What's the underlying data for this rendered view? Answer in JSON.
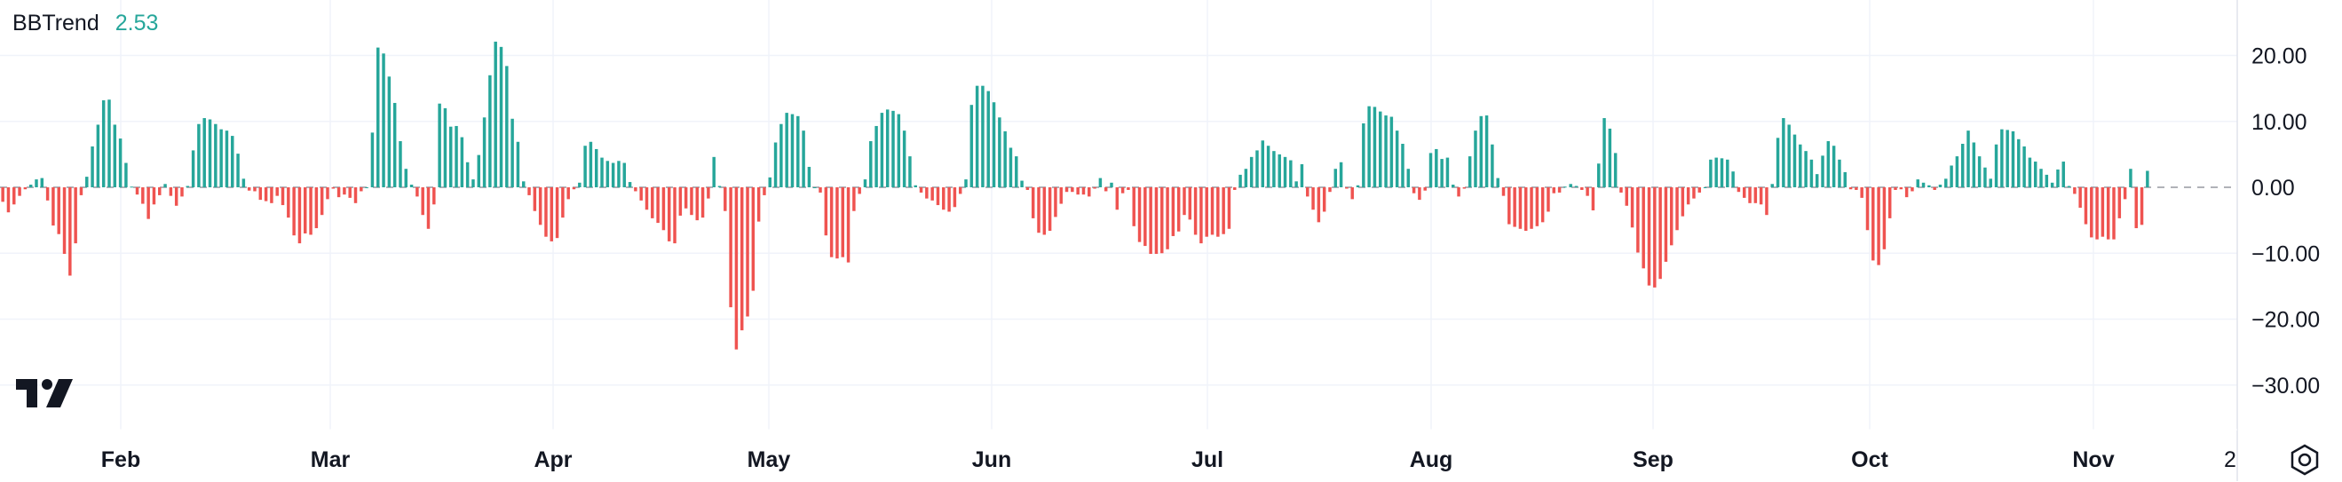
{
  "indicator": {
    "name": "BBTrend",
    "value": "2.53"
  },
  "colors": {
    "positive": "#26a69a",
    "negative": "#ef5350",
    "grid": "#f0f3fa",
    "text": "#131722"
  },
  "icons": {
    "logo": "tradingview-logo-icon",
    "settings": "settings-gear-icon"
  },
  "chart_data": {
    "type": "bar",
    "title": "BBTrend",
    "ylim": [
      -35,
      25
    ],
    "y_ticks": [
      20,
      10,
      0,
      -10,
      -20,
      -30
    ],
    "y_tick_labels": [
      "20.00",
      "10.00",
      "0.00",
      "−10.00",
      "−20.00",
      "−30.00"
    ],
    "x_tick_labels": [
      "Feb",
      "Mar",
      "Apr",
      "May",
      "Jun",
      "Jul",
      "Aug",
      "Sep",
      "Oct",
      "Nov",
      "2"
    ],
    "x_tick_label_bold": [
      true,
      true,
      true,
      true,
      true,
      true,
      true,
      true,
      true,
      true,
      false
    ],
    "x_range": [
      "Jan",
      "Nov"
    ],
    "grid": true,
    "zero_line": "dashed",
    "last_value": 2.53,
    "values": [
      -2.2,
      -3.8,
      -2.6,
      -1.3,
      -0.3,
      0.4,
      1.2,
      1.4,
      -2.0,
      -5.8,
      -7.1,
      -10.1,
      -13.4,
      -8.5,
      -1.2,
      1.6,
      6.2,
      9.5,
      13.2,
      13.3,
      9.5,
      7.4,
      3.7,
      0.1,
      -1.1,
      -2.5,
      -4.8,
      -2.6,
      -1.2,
      0.5,
      -1.3,
      -2.8,
      -1.4,
      0.2,
      5.6,
      9.6,
      10.5,
      10.3,
      9.6,
      8.8,
      8.6,
      7.8,
      5.1,
      1.3,
      -0.5,
      -0.6,
      -1.9,
      -2.1,
      -2.4,
      -1.3,
      -2.7,
      -4.6,
      -7.3,
      -8.5,
      -7.0,
      -7.2,
      -6.2,
      -4.2,
      -1.8,
      -0.2,
      -1.5,
      -1.1,
      -1.6,
      -2.4,
      -0.6,
      0.0,
      8.3,
      21.2,
      20.3,
      16.8,
      12.8,
      7.0,
      2.8,
      0.4,
      -1.4,
      -4.2,
      -6.3,
      -2.6,
      12.7,
      12.0,
      9.2,
      9.3,
      7.6,
      3.8,
      1.2,
      4.9,
      10.6,
      17.0,
      22.1,
      21.3,
      18.4,
      10.4,
      6.9,
      0.9,
      -1.2,
      -3.6,
      -5.7,
      -7.5,
      -8.2,
      -7.7,
      -4.6,
      -1.8,
      -0.3,
      0.7,
      6.3,
      6.9,
      5.8,
      4.5,
      4.0,
      3.7,
      4.0,
      3.7,
      0.8,
      -0.6,
      -2.0,
      -3.4,
      -4.7,
      -5.4,
      -6.5,
      -8.2,
      -8.5,
      -4.3,
      -3.2,
      -4.2,
      -5.0,
      -4.6,
      -1.7,
      4.6,
      0.2,
      -3.6,
      -18.2,
      -24.6,
      -21.7,
      -19.6,
      -15.7,
      -5.2,
      -1.2,
      1.5,
      6.8,
      9.6,
      11.3,
      11.1,
      10.8,
      8.6,
      3.1,
      0.0,
      -0.8,
      -7.3,
      -10.6,
      -10.8,
      -10.6,
      -11.4,
      -3.6,
      -1.0,
      1.2,
      7.0,
      9.3,
      11.3,
      11.8,
      11.6,
      11.1,
      8.6,
      4.7,
      0.3,
      -0.8,
      -1.7,
      -2.0,
      -2.7,
      -3.4,
      -3.7,
      -3.0,
      -1.0,
      1.2,
      12.5,
      15.4,
      15.4,
      14.6,
      12.9,
      10.6,
      8.5,
      6.0,
      4.7,
      1.0,
      -0.4,
      -4.7,
      -6.9,
      -7.2,
      -6.6,
      -4.5,
      -2.5,
      -0.7,
      -0.7,
      -1.1,
      -1.1,
      -1.4,
      -0.2,
      1.4,
      -0.6,
      0.7,
      -3.4,
      -0.9,
      -0.4,
      -5.9,
      -8.3,
      -8.9,
      -10.1,
      -10.1,
      -10.0,
      -9.4,
      -7.4,
      -6.7,
      -4.2,
      -4.9,
      -7.2,
      -8.5,
      -7.5,
      -7.2,
      -7.5,
      -7.1,
      -6.3,
      -0.4,
      1.9,
      2.8,
      4.6,
      5.6,
      7.1,
      6.3,
      5.5,
      5.0,
      4.6,
      4.1,
      0.9,
      3.5,
      -1.4,
      -3.4,
      -5.3,
      -3.7,
      -0.7,
      2.8,
      3.8,
      -0.2,
      -1.8,
      0.3,
      9.7,
      12.3,
      12.2,
      11.5,
      10.9,
      10.7,
      8.6,
      6.6,
      2.8,
      -0.9,
      -1.9,
      -0.5,
      5.2,
      5.8,
      4.3,
      4.5,
      0.4,
      -1.4,
      -0.2,
      4.7,
      8.6,
      10.8,
      10.9,
      6.5,
      1.4,
      -1.3,
      -5.6,
      -6.0,
      -6.3,
      -6.6,
      -6.3,
      -5.9,
      -5.3,
      -3.7,
      -0.9,
      -0.8,
      0.1,
      0.5,
      0.2,
      -0.4,
      -1.3,
      -3.5,
      3.6,
      10.5,
      8.9,
      5.2,
      -0.8,
      -2.8,
      -6.1,
      -9.9,
      -12.3,
      -14.9,
      -15.2,
      -13.9,
      -11.3,
      -8.8,
      -6.5,
      -4.4,
      -2.6,
      -1.7,
      -0.8,
      0.0,
      4.2,
      4.5,
      4.4,
      4.2,
      2.4,
      -0.7,
      -1.6,
      -2.4,
      -2.4,
      -2.6,
      -4.2,
      0.5,
      7.5,
      10.5,
      9.5,
      8.0,
      6.5,
      5.5,
      4.2,
      2.0,
      4.8,
      7.0,
      6.3,
      4.2,
      2.3,
      -0.3,
      -0.4,
      -1.6,
      -6.5,
      -11.1,
      -11.8,
      -9.4,
      -4.7,
      -0.4,
      -0.3,
      -1.5,
      -0.6,
      1.2,
      0.7,
      0.3,
      -0.4,
      0.4,
      1.3,
      3.3,
      4.7,
      6.6,
      8.6,
      6.8,
      4.7,
      3.0,
      1.3,
      6.5,
      8.8,
      8.7,
      8.5,
      7.3,
      6.2,
      4.5,
      3.9,
      2.8,
      1.9,
      0.7,
      2.7,
      3.9,
      0.2,
      -1.0,
      -3.1,
      -5.6,
      -7.6,
      -7.9,
      -7.5,
      -7.9,
      -7.9,
      -4.7,
      -1.8,
      2.8,
      -6.2,
      -5.7,
      2.5
    ]
  }
}
